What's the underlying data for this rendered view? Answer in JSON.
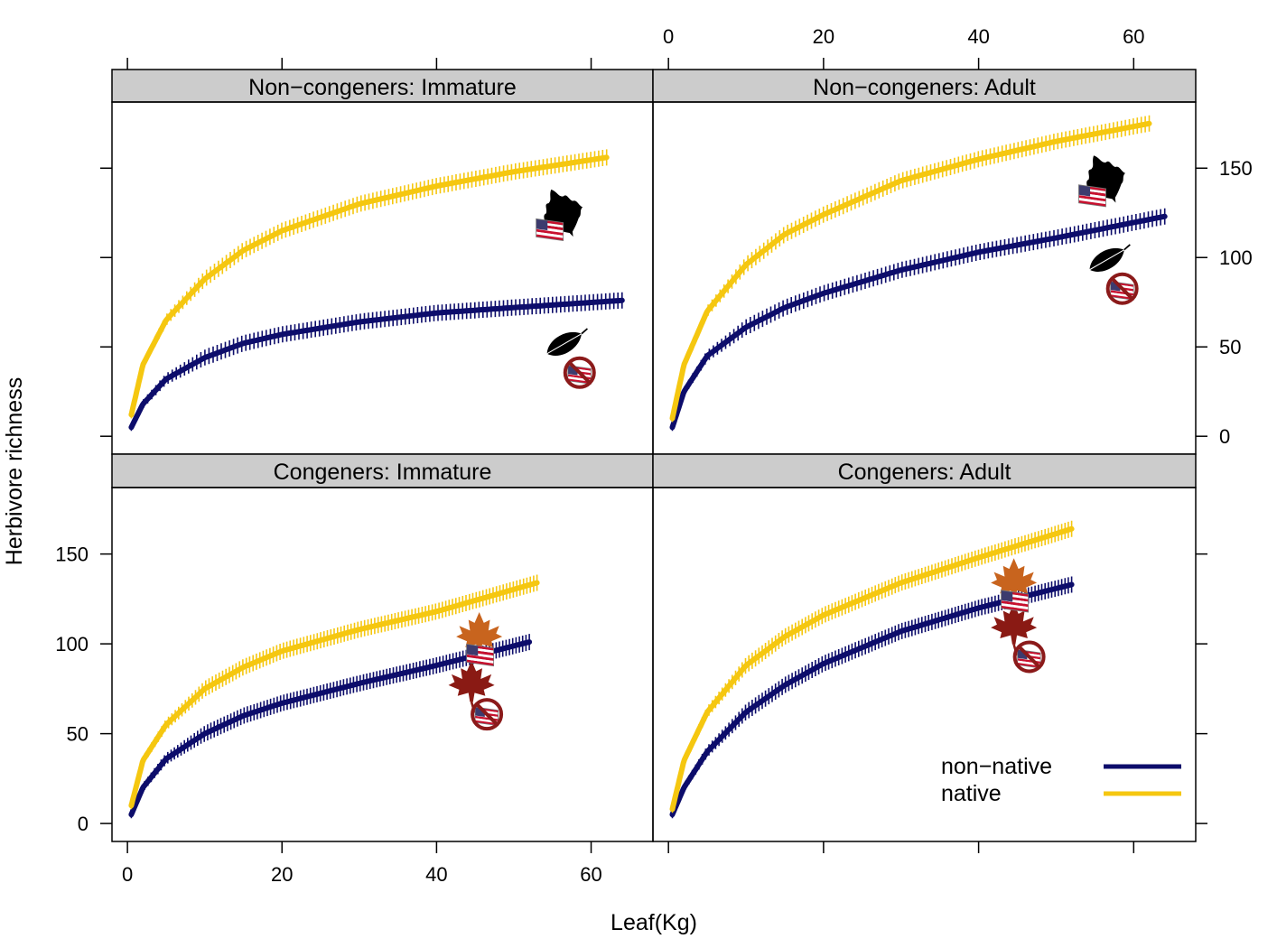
{
  "figure": {
    "xlabel": "Leaf(Kg)",
    "ylabel": "Herbivore richness"
  },
  "legend": {
    "placement": "bottom-right",
    "entries": [
      {
        "label": "non−native",
        "color": "#0d0d6b"
      },
      {
        "label": "native",
        "color": "#f5c710"
      }
    ]
  },
  "colors": {
    "strip": "#cccccc",
    "native": "#f5c710",
    "non_native": "#0d0d6b",
    "leaf_black": "#000000",
    "leaf_orange": "#c8641e",
    "leaf_red": "#8a1a14",
    "no_sign": "#8b1a1a"
  },
  "chart_data": [
    {
      "type": "line",
      "title": "Non−congeners: Immature",
      "xlim": [
        -2,
        68
      ],
      "ylim": [
        -10,
        187
      ],
      "x_ticks": [
        0,
        20,
        40,
        60
      ],
      "y_ticks": [
        0,
        50,
        100,
        150
      ],
      "series": [
        {
          "name": "native",
          "x": [
            0.5,
            2,
            5,
            10,
            15,
            20,
            30,
            40,
            50,
            62
          ],
          "y": [
            12,
            40,
            65,
            88,
            104,
            115,
            130,
            140,
            148,
            156
          ],
          "icon": [
            "oak-leaf-icon",
            "us-flag-icon"
          ]
        },
        {
          "name": "non−native",
          "x": [
            0.5,
            2,
            5,
            10,
            15,
            20,
            30,
            40,
            50,
            64
          ],
          "y": [
            5,
            18,
            32,
            44,
            52,
            57,
            64,
            69,
            72,
            76
          ],
          "icon": [
            "elm-leaf-icon",
            "no-us-flag-icon"
          ]
        }
      ]
    },
    {
      "type": "line",
      "title": "Non−congeners: Adult",
      "xlim": [
        -2,
        68
      ],
      "ylim": [
        -10,
        187
      ],
      "x_ticks": [
        0,
        20,
        40,
        60
      ],
      "y_ticks": [
        0,
        50,
        100,
        150
      ],
      "series": [
        {
          "name": "native",
          "x": [
            0.5,
            2,
            5,
            10,
            15,
            20,
            30,
            40,
            50,
            62
          ],
          "y": [
            10,
            40,
            70,
            96,
            113,
            124,
            143,
            155,
            165,
            175
          ],
          "icon": [
            "oak-leaf-icon",
            "us-flag-icon"
          ]
        },
        {
          "name": "non−native",
          "x": [
            0.5,
            2,
            5,
            10,
            15,
            20,
            30,
            40,
            50,
            64
          ],
          "y": [
            5,
            25,
            45,
            61,
            72,
            80,
            93,
            103,
            111,
            123
          ],
          "icon": [
            "elm-leaf-icon",
            "no-us-flag-icon"
          ]
        }
      ]
    },
    {
      "type": "line",
      "title": "Congeners: Immature",
      "xlim": [
        -2,
        68
      ],
      "ylim": [
        -10,
        187
      ],
      "x_ticks": [
        0,
        20,
        40,
        60
      ],
      "y_ticks": [
        0,
        50,
        100,
        150
      ],
      "series": [
        {
          "name": "native",
          "x": [
            0.5,
            2,
            5,
            10,
            15,
            20,
            30,
            40,
            53
          ],
          "y": [
            10,
            35,
            55,
            75,
            87,
            96,
            108,
            118,
            134
          ],
          "icon": [
            "maple-leaf-icon",
            "us-flag-icon"
          ]
        },
        {
          "name": "non−native",
          "x": [
            0.5,
            2,
            5,
            10,
            15,
            20,
            30,
            40,
            52
          ],
          "y": [
            5,
            20,
            36,
            50,
            60,
            67,
            78,
            88,
            101
          ],
          "icon": [
            "maple-leaf-icon",
            "no-us-flag-icon"
          ]
        }
      ]
    },
    {
      "type": "line",
      "title": "Congeners: Adult",
      "xlim": [
        -2,
        68
      ],
      "ylim": [
        -10,
        187
      ],
      "x_ticks": [
        0,
        20,
        40,
        60
      ],
      "y_ticks": [
        0,
        50,
        100,
        150
      ],
      "series": [
        {
          "name": "native",
          "x": [
            0.5,
            2,
            5,
            10,
            15,
            20,
            30,
            40,
            52
          ],
          "y": [
            8,
            35,
            62,
            88,
            104,
            116,
            134,
            148,
            164
          ],
          "icon": [
            "maple-leaf-icon",
            "us-flag-icon"
          ]
        },
        {
          "name": "non−native",
          "x": [
            0.5,
            2,
            5,
            10,
            15,
            20,
            30,
            40,
            52
          ],
          "y": [
            5,
            20,
            40,
            62,
            77,
            89,
            107,
            120,
            133
          ],
          "icon": [
            "maple-leaf-icon",
            "no-us-flag-icon"
          ]
        }
      ]
    }
  ]
}
